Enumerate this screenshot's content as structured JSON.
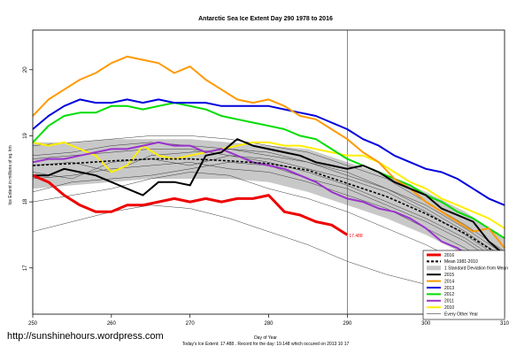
{
  "chart_data": {
    "type": "line",
    "title": "Antarctic Sea Ice Extent Day 290 1978 to 2016",
    "xlabel": "Day of Year",
    "ylabel": "Ice Extent in millions of sq. km",
    "xlim": [
      250,
      310
    ],
    "ylim": [
      16.3,
      20.6
    ],
    "x_ticks": [
      250,
      260,
      270,
      280,
      290,
      300,
      310
    ],
    "y_ticks": [
      17,
      18,
      19,
      20
    ],
    "marker_day": 290,
    "grid": false,
    "legend_position": "bottom-right",
    "std_band": {
      "name": "1 Standard Deviation from Mean",
      "x": [
        250,
        255,
        260,
        265,
        270,
        275,
        280,
        285,
        290,
        295,
        300,
        305,
        310
      ],
      "upper": [
        18.9,
        18.9,
        18.95,
        18.95,
        18.95,
        18.9,
        18.85,
        18.8,
        18.6,
        18.4,
        18.15,
        17.85,
        17.45
      ],
      "lower": [
        18.2,
        18.25,
        18.3,
        18.35,
        18.35,
        18.35,
        18.3,
        18.15,
        17.95,
        17.75,
        17.5,
        17.2,
        16.85
      ]
    },
    "background_years": {
      "name": "Every Other Year",
      "x": [
        250,
        255,
        260,
        265,
        270,
        275,
        280,
        285,
        290,
        295,
        300,
        305,
        310
      ],
      "series": [
        [
          17.55,
          17.7,
          17.85,
          17.95,
          17.9,
          17.75,
          17.55,
          17.35,
          17.1,
          16.9,
          16.75,
          16.6,
          16.5
        ],
        [
          18.0,
          18.1,
          18.2,
          18.35,
          18.45,
          18.4,
          18.2,
          18.05,
          17.85,
          17.6,
          17.35,
          17.05,
          16.75
        ],
        [
          18.35,
          18.4,
          18.5,
          18.55,
          18.6,
          18.5,
          18.45,
          18.3,
          18.1,
          17.9,
          17.6,
          17.3,
          16.95
        ],
        [
          18.65,
          18.7,
          18.75,
          18.8,
          18.8,
          18.7,
          18.65,
          18.5,
          18.35,
          18.15,
          17.85,
          17.5,
          17.1
        ],
        [
          18.85,
          18.9,
          18.95,
          19.0,
          19.0,
          18.95,
          18.85,
          18.75,
          18.55,
          18.35,
          18.0,
          17.65,
          17.25
        ],
        [
          18.45,
          18.35,
          18.6,
          18.65,
          18.55,
          18.7,
          18.6,
          18.45,
          18.25,
          18.0,
          17.75,
          17.45,
          17.05
        ],
        [
          18.15,
          18.3,
          18.35,
          18.4,
          18.5,
          18.6,
          18.55,
          18.35,
          18.2,
          17.95,
          17.7,
          17.4,
          17.0
        ],
        [
          18.55,
          18.6,
          18.45,
          18.7,
          18.75,
          18.8,
          18.75,
          18.6,
          18.45,
          18.2,
          17.95,
          17.6,
          17.2
        ],
        [
          18.7,
          18.75,
          18.85,
          18.9,
          18.85,
          18.8,
          18.7,
          18.6,
          18.4,
          18.2,
          17.9,
          17.55,
          17.15
        ]
      ]
    },
    "series": [
      {
        "name": "2016",
        "color": "#ee0000",
        "x": [
          250,
          252,
          254,
          256,
          258,
          260,
          262,
          264,
          266,
          268,
          270,
          272,
          274,
          276,
          278,
          280,
          282,
          284,
          286,
          288,
          290
        ],
        "values": [
          18.4,
          18.3,
          18.1,
          17.95,
          17.85,
          17.85,
          17.95,
          17.95,
          18.0,
          18.05,
          18.0,
          18.05,
          18.0,
          18.05,
          18.05,
          18.1,
          17.85,
          17.8,
          17.7,
          17.65,
          17.5
        ]
      },
      {
        "name": "Mean 1981-2010",
        "color": "#000000",
        "x": [
          250,
          255,
          260,
          265,
          270,
          275,
          280,
          285,
          290,
          295,
          300,
          305,
          310
        ],
        "values": [
          18.55,
          18.58,
          18.62,
          18.65,
          18.65,
          18.62,
          18.58,
          18.48,
          18.28,
          18.08,
          17.82,
          17.52,
          17.15
        ]
      },
      {
        "name": "2015",
        "color": "#000000",
        "x": [
          250,
          252,
          254,
          256,
          258,
          260,
          262,
          264,
          266,
          268,
          270,
          272,
          274,
          276,
          278,
          280,
          282,
          284,
          286,
          288,
          290,
          292,
          294,
          296,
          298,
          300,
          302,
          304,
          306,
          308,
          310
        ],
        "values": [
          18.4,
          18.4,
          18.5,
          18.45,
          18.4,
          18.3,
          18.2,
          18.1,
          18.3,
          18.3,
          18.25,
          18.7,
          18.75,
          18.95,
          18.85,
          18.8,
          18.75,
          18.7,
          18.6,
          18.55,
          18.5,
          18.55,
          18.45,
          18.3,
          18.2,
          18.1,
          17.9,
          17.8,
          17.7,
          17.4,
          17.2
        ]
      },
      {
        "name": "2014",
        "color": "#ff9900",
        "x": [
          250,
          252,
          254,
          256,
          258,
          260,
          262,
          264,
          266,
          268,
          270,
          272,
          274,
          276,
          278,
          280,
          282,
          284,
          286,
          288,
          290,
          292,
          294,
          296,
          298,
          300,
          302,
          304,
          306,
          308,
          310
        ],
        "values": [
          19.3,
          19.55,
          19.7,
          19.85,
          19.95,
          20.1,
          20.2,
          20.15,
          20.1,
          19.95,
          20.05,
          19.85,
          19.7,
          19.55,
          19.5,
          19.55,
          19.45,
          19.3,
          19.25,
          19.1,
          18.95,
          18.75,
          18.6,
          18.35,
          18.2,
          18.0,
          17.85,
          17.7,
          17.55,
          17.6,
          17.3
        ]
      },
      {
        "name": "2013",
        "color": "#0000dd",
        "x": [
          250,
          252,
          254,
          256,
          258,
          260,
          262,
          264,
          266,
          268,
          270,
          272,
          274,
          276,
          278,
          280,
          282,
          284,
          286,
          288,
          290,
          292,
          294,
          296,
          298,
          300,
          302,
          304,
          306,
          308,
          310
        ],
        "values": [
          19.1,
          19.3,
          19.45,
          19.55,
          19.5,
          19.5,
          19.55,
          19.5,
          19.55,
          19.5,
          19.5,
          19.5,
          19.45,
          19.45,
          19.45,
          19.45,
          19.4,
          19.35,
          19.3,
          19.2,
          19.1,
          18.95,
          18.85,
          18.7,
          18.6,
          18.5,
          18.45,
          18.35,
          18.2,
          18.05,
          17.95
        ]
      },
      {
        "name": "2012",
        "color": "#00dd00",
        "x": [
          250,
          252,
          254,
          256,
          258,
          260,
          262,
          264,
          266,
          268,
          270,
          272,
          274,
          276,
          278,
          280,
          282,
          284,
          286,
          288,
          290,
          292,
          294,
          296,
          298,
          300,
          302,
          304,
          306,
          308,
          310
        ],
        "values": [
          18.9,
          19.15,
          19.3,
          19.35,
          19.35,
          19.45,
          19.45,
          19.4,
          19.45,
          19.5,
          19.45,
          19.4,
          19.3,
          19.25,
          19.2,
          19.15,
          19.1,
          19.0,
          18.95,
          18.8,
          18.65,
          18.55,
          18.45,
          18.35,
          18.25,
          18.1,
          18.0,
          17.85,
          17.75,
          17.6,
          17.45
        ]
      },
      {
        "name": "2011",
        "color": "#9933cc",
        "x": [
          250,
          252,
          254,
          256,
          258,
          260,
          262,
          264,
          266,
          268,
          270,
          272,
          274,
          276,
          278,
          280,
          282,
          284,
          286,
          288,
          290,
          292,
          294,
          296,
          298,
          300,
          302,
          304,
          306,
          308,
          310
        ],
        "values": [
          18.6,
          18.65,
          18.65,
          18.7,
          18.75,
          18.8,
          18.8,
          18.85,
          18.9,
          18.85,
          18.85,
          18.75,
          18.8,
          18.7,
          18.6,
          18.55,
          18.5,
          18.4,
          18.3,
          18.15,
          18.05,
          18.0,
          17.9,
          17.85,
          17.75,
          17.6,
          17.4,
          17.3,
          17.15,
          17.0,
          16.95
        ]
      },
      {
        "name": "2010",
        "color": "#ffee00",
        "x": [
          250,
          252,
          254,
          256,
          258,
          260,
          262,
          264,
          266,
          268,
          270,
          272,
          274,
          276,
          278,
          280,
          282,
          284,
          286,
          288,
          290,
          292,
          294,
          296,
          298,
          300,
          302,
          304,
          306,
          308,
          310
        ],
        "values": [
          18.9,
          18.85,
          18.9,
          18.8,
          18.7,
          18.45,
          18.55,
          18.85,
          18.7,
          18.65,
          18.7,
          18.75,
          18.8,
          18.85,
          18.9,
          18.9,
          18.85,
          18.85,
          18.8,
          18.75,
          18.7,
          18.7,
          18.6,
          18.45,
          18.3,
          18.2,
          18.05,
          17.95,
          17.85,
          17.75,
          17.6
        ]
      }
    ],
    "legend": [
      {
        "label": "2016",
        "color": "#ee0000",
        "kind": "line"
      },
      {
        "label": "Mean 1981-2010",
        "color": "#000000",
        "kind": "dashed"
      },
      {
        "label": "1 Standard Deviation from Mean",
        "color": "#c8c8c8",
        "kind": "band"
      },
      {
        "label": "2015",
        "color": "#000000",
        "kind": "line"
      },
      {
        "label": "2014",
        "color": "#ff9900",
        "kind": "line"
      },
      {
        "label": "2013",
        "color": "#0000dd",
        "kind": "line"
      },
      {
        "label": "2012",
        "color": "#00dd00",
        "kind": "line"
      },
      {
        "label": "2011",
        "color": "#9933cc",
        "kind": "line"
      },
      {
        "label": "2010",
        "color": "#ffee00",
        "kind": "line"
      },
      {
        "label": "Every Other Year",
        "color": "#555555",
        "kind": "thin"
      }
    ],
    "annotations": [
      {
        "text": "17.488",
        "x": 290,
        "y": 17.49,
        "color": "#ff0000"
      }
    ]
  },
  "footer": {
    "url": "http://sunshinehours.wordpress.com",
    "caption": "Today's Ice Extent: 17.488 . Record for the day: 19.148 which occured on 2013 10 17"
  }
}
